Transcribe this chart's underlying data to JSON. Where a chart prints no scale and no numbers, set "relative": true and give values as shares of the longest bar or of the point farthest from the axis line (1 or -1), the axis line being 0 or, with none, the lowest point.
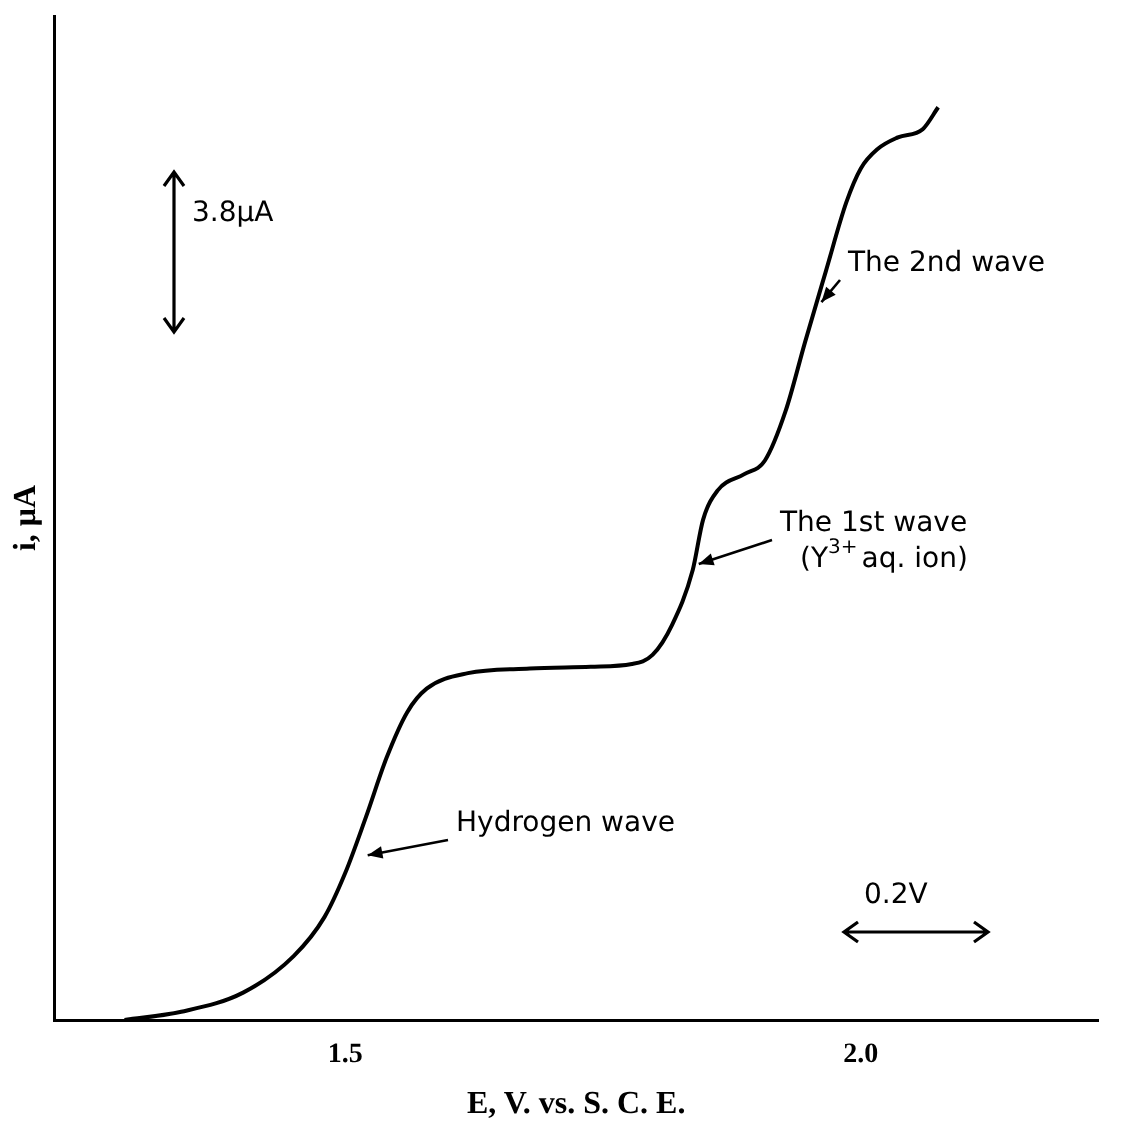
{
  "chart_data": {
    "type": "line",
    "relative": true,
    "xlabel": "E, V. vs. S. C. E.",
    "ylabel": "i, μA",
    "x": [
      1.286,
      1.341,
      1.401,
      1.45,
      1.48,
      1.5,
      1.52,
      1.54,
      1.56,
      1.579,
      1.619,
      1.679,
      1.738,
      1.778,
      1.798,
      1.817,
      1.837,
      1.847,
      1.861,
      1.887,
      1.907,
      1.927,
      1.946,
      1.966,
      1.986,
      2.0,
      2.016,
      2.036,
      2.06,
      2.075
    ],
    "series": [
      {
        "color": "#000000",
        "values": [
          0,
          0.009,
          0.03,
          0.07,
          0.113,
          0.161,
          0.222,
          0.287,
          0.337,
          0.363,
          0.38,
          0.385,
          0.387,
          0.39,
          0.4,
          0.433,
          0.493,
          0.548,
          0.58,
          0.598,
          0.613,
          0.667,
          0.743,
          0.82,
          0.896,
          0.933,
          0.954,
          0.967,
          0.976,
          1
        ]
      }
    ],
    "xlim": [
      1.218,
      2.23
    ],
    "xticks": [
      1.5,
      {
        "value": 2,
        "label": "2.0"
      }
    ],
    "grid": false,
    "legend": false,
    "marker": "none",
    "line_style": "solid",
    "annotations": [
      "3.8μA",
      "0.2V",
      {
        "text": "Hydrogen wave",
        "x": 1.516,
        "y": 0.174
      },
      {
        "text": "The 1st wave\n(Y$^{3+}$aq. ion)",
        "x": 1.837,
        "y": 0.493
      },
      {
        "text": "The 2nd wave",
        "x": 1.956,
        "y": 0.78
      }
    ]
  }
}
